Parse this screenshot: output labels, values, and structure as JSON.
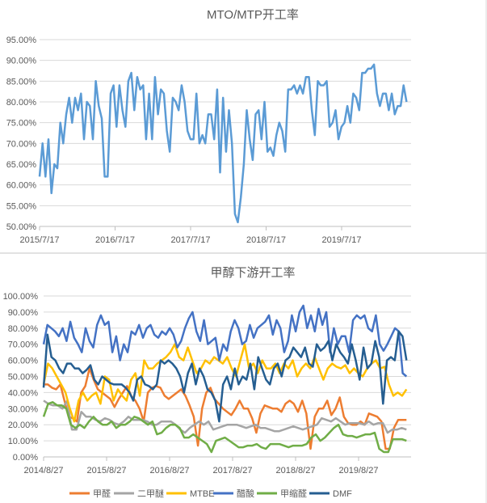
{
  "colors": {
    "mto": "#5B9BD5",
    "divider": "#d9d9d9"
  },
  "chart_data": [
    {
      "type": "line",
      "title": "MTO/MTP开工率",
      "xlabel": "",
      "ylabel": "",
      "ylim": [
        50,
        95
      ],
      "yticks": [
        50,
        55,
        60,
        65,
        70,
        75,
        80,
        85,
        90,
        95
      ],
      "ytick_format": "percent2",
      "x_range_years": [
        2015.54,
        2020.4
      ],
      "xticks": [
        {
          "t": 2015.54,
          "label": "2015/7/17"
        },
        {
          "t": 2016.54,
          "label": "2016/7/17"
        },
        {
          "t": 2017.54,
          "label": "2017/7/17"
        },
        {
          "t": 2018.54,
          "label": "2018/7/17"
        },
        {
          "t": 2019.54,
          "label": "2019/7/17"
        }
      ],
      "grid": true,
      "series": [
        {
          "name": "MTO/MTP开工率",
          "color": "#5B9BD5",
          "values": [
            62,
            70,
            62,
            71,
            58,
            65,
            64,
            75,
            70,
            77,
            81,
            75,
            81,
            78,
            82,
            71,
            80,
            79,
            71,
            85,
            79,
            76,
            62,
            62,
            82,
            84,
            74,
            84,
            78,
            74,
            85,
            87,
            78,
            86,
            83,
            84,
            71,
            82,
            71,
            86,
            77,
            83,
            82,
            73,
            68,
            81,
            80,
            78,
            84,
            80,
            73,
            71,
            71,
            82,
            70,
            72,
            70,
            77,
            77,
            71,
            83,
            63,
            81,
            68,
            78,
            70,
            53,
            51,
            57,
            65,
            78,
            71,
            66,
            77,
            78,
            71,
            80,
            68,
            69,
            67,
            72,
            75,
            73,
            68,
            83,
            83,
            84,
            82,
            84,
            82,
            86,
            86,
            78,
            72,
            85,
            84,
            84,
            85,
            74,
            75,
            78,
            71,
            74,
            75,
            79,
            75,
            82,
            81,
            78,
            87,
            87,
            88,
            88,
            89,
            82,
            79,
            82,
            82,
            78,
            82,
            77,
            79,
            79,
            84,
            80
          ]
        }
      ]
    },
    {
      "type": "line",
      "title": "甲醇下游开工率",
      "xlabel": "",
      "ylabel": "",
      "ylim": [
        0,
        100
      ],
      "yticks": [
        0,
        10,
        20,
        30,
        40,
        50,
        60,
        70,
        80,
        90,
        100
      ],
      "ytick_format": "percent2",
      "x_range_years": [
        2014.65,
        2020.41
      ],
      "xticks": [
        {
          "t": 2014.65,
          "label": "2014/8/27"
        },
        {
          "t": 2015.65,
          "label": "2015/8/27"
        },
        {
          "t": 2016.65,
          "label": "2016/8/27"
        },
        {
          "t": 2017.65,
          "label": "2017/8/27"
        },
        {
          "t": 2018.65,
          "label": "2018/8/27"
        },
        {
          "t": 2019.65,
          "label": "2019/8/27"
        }
      ],
      "grid": true,
      "legend": "bottom",
      "series": [
        {
          "name": "甲醛",
          "color": "#ED7D31",
          "values": [
            45,
            45,
            43,
            42,
            45,
            35,
            25,
            24,
            22,
            40,
            44,
            55,
            48,
            42,
            40,
            38,
            36,
            31,
            36,
            40,
            44,
            38,
            35,
            30,
            22,
            40,
            43,
            44,
            43,
            38,
            36,
            38,
            40,
            42,
            38,
            32,
            25,
            7,
            30,
            40,
            43,
            36,
            33,
            30,
            28,
            26,
            30,
            35,
            30,
            30,
            24,
            15,
            27,
            32,
            31,
            30,
            30,
            28,
            33,
            35,
            33,
            28,
            35,
            27,
            5,
            25,
            30,
            30,
            35,
            26,
            30,
            37,
            25,
            21,
            20,
            20,
            22,
            20,
            27,
            26,
            25,
            22,
            5,
            5,
            18,
            23,
            23,
            23
          ]
        },
        {
          "name": "二甲醚",
          "color": "#A5A5A5",
          "values": [
            35,
            33,
            32,
            32,
            30,
            35,
            17,
            17,
            28,
            25,
            25,
            23,
            22,
            24,
            23,
            21,
            20,
            22,
            25,
            23,
            23,
            23,
            22,
            20,
            20,
            22,
            22,
            22,
            20,
            17,
            15,
            18,
            20,
            22,
            20,
            22,
            17,
            18,
            19,
            20,
            20,
            20,
            19,
            18,
            19,
            20,
            18,
            18,
            17,
            16,
            16,
            17,
            18,
            19,
            18,
            17,
            18,
            19,
            20,
            24,
            23,
            22,
            24,
            22,
            20,
            21,
            21,
            21,
            20,
            22,
            20,
            21,
            21,
            15,
            17,
            17,
            18,
            17
          ]
        },
        {
          "name": "MTBE",
          "color": "#FFC000",
          "values": [
            45,
            58,
            55,
            50,
            45,
            40,
            30,
            22,
            35,
            40,
            35,
            38,
            40,
            33,
            50,
            48,
            35,
            42,
            38,
            35,
            48,
            52,
            38,
            60,
            55,
            55,
            58,
            60,
            62,
            65,
            70,
            62,
            60,
            68,
            60,
            52,
            55,
            60,
            58,
            62,
            60,
            58,
            62,
            55,
            50,
            60,
            70,
            55,
            58,
            52,
            60,
            55,
            55,
            58,
            52,
            58,
            55,
            60,
            50,
            55,
            58,
            55,
            62,
            55,
            48,
            55,
            58,
            56,
            55,
            57,
            52,
            55,
            52,
            50,
            55,
            58,
            60,
            55,
            56,
            45,
            38,
            40,
            38,
            42
          ]
        },
        {
          "name": "醋酸",
          "color": "#4472C4",
          "values": [
            70,
            82,
            80,
            78,
            75,
            80,
            72,
            84,
            74,
            70,
            65,
            80,
            72,
            68,
            82,
            88,
            82,
            84,
            65,
            75,
            60,
            70,
            65,
            78,
            76,
            82,
            74,
            80,
            82,
            76,
            74,
            78,
            76,
            80,
            76,
            68,
            72,
            80,
            86,
            90,
            78,
            72,
            85,
            70,
            72,
            74,
            60,
            70,
            66,
            78,
            85,
            80,
            70,
            72,
            82,
            74,
            80,
            82,
            84,
            88,
            76,
            85,
            80,
            65,
            72,
            88,
            78,
            90,
            94,
            80,
            88,
            78,
            92,
            82,
            90,
            65,
            80,
            70,
            75,
            75,
            65,
            85,
            88,
            86,
            88,
            80,
            78,
            88,
            70,
            66,
            70,
            75,
            80,
            78,
            52,
            50
          ]
        },
        {
          "name": "甲缩醛",
          "color": "#70AD47",
          "values": [
            25,
            33,
            34,
            32,
            32,
            30,
            20,
            18,
            20,
            18,
            22,
            25,
            22,
            20,
            20,
            22,
            18,
            20,
            20,
            22,
            25,
            24,
            22,
            20,
            22,
            14,
            15,
            18,
            20,
            20,
            18,
            12,
            12,
            14,
            12,
            10,
            8,
            3,
            10,
            11,
            12,
            10,
            8,
            6,
            6,
            7,
            7,
            8,
            6,
            5,
            8,
            8,
            8,
            7,
            6,
            7,
            7,
            7,
            8,
            12,
            14,
            10,
            12,
            15,
            18,
            20,
            14,
            13,
            13,
            12,
            13,
            14,
            14,
            15,
            5,
            3,
            3,
            11,
            11,
            11,
            10
          ]
        },
        {
          "name": "DMF",
          "color": "#255E91",
          "values": [
            43,
            76,
            62,
            60,
            55,
            52,
            58,
            58,
            55,
            55,
            52,
            54,
            57,
            48,
            45,
            50,
            48,
            46,
            45,
            45,
            45,
            43,
            40,
            35,
            48,
            50,
            45,
            44,
            42,
            45,
            60,
            58,
            60,
            58,
            55,
            50,
            40,
            52,
            58,
            45,
            55,
            50,
            42,
            40,
            35,
            22,
            45,
            50,
            42,
            55,
            45,
            50,
            48,
            58,
            42,
            62,
            55,
            48,
            45,
            55,
            58,
            50,
            60,
            62,
            68,
            65,
            62,
            68,
            58,
            56,
            70,
            66,
            68,
            72,
            60,
            70,
            65,
            62,
            58,
            70,
            60,
            48,
            68,
            55,
            58,
            72,
            62,
            33,
            60,
            62,
            60,
            78,
            75,
            60
          ]
        }
      ]
    }
  ]
}
